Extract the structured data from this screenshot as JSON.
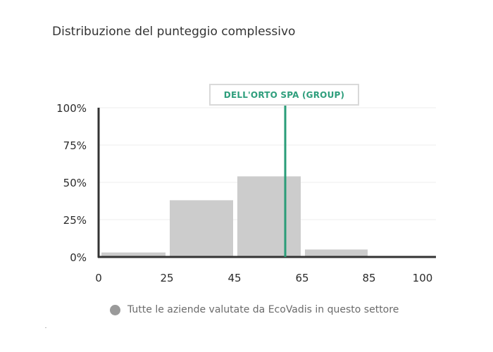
{
  "title": "Distribuzione del punteggio complessivo",
  "company_marker": {
    "label": "DELL'ORTO SPA (GROUP)",
    "score": 60,
    "color": "#2a9d78"
  },
  "legend": {
    "label": "Tutte le aziende valutate da EcoVadis in questo settore",
    "swatch_color": "#9a9a9a"
  },
  "chart_data": {
    "type": "bar",
    "title": "Distribuzione del punteggio complessivo",
    "xlabel": "",
    "ylabel": "",
    "x_ticks": [
      "0",
      "25",
      "45",
      "65",
      "85",
      "100"
    ],
    "x_tick_values": [
      0,
      25,
      45,
      65,
      85,
      100
    ],
    "y_ticks": [
      "0%",
      "25%",
      "50%",
      "75%",
      "100%"
    ],
    "y_tick_values": [
      0,
      25,
      50,
      75,
      100
    ],
    "ylim": [
      0,
      100
    ],
    "bins": [
      {
        "from": 0,
        "to": 25,
        "value": 3
      },
      {
        "from": 25,
        "to": 45,
        "value": 38
      },
      {
        "from": 45,
        "to": 65,
        "value": 54
      },
      {
        "from": 65,
        "to": 85,
        "value": 5
      },
      {
        "from": 85,
        "to": 100,
        "value": 0
      }
    ],
    "bar_color": "#cccccc",
    "grid": true,
    "legend_position": "bottom"
  }
}
